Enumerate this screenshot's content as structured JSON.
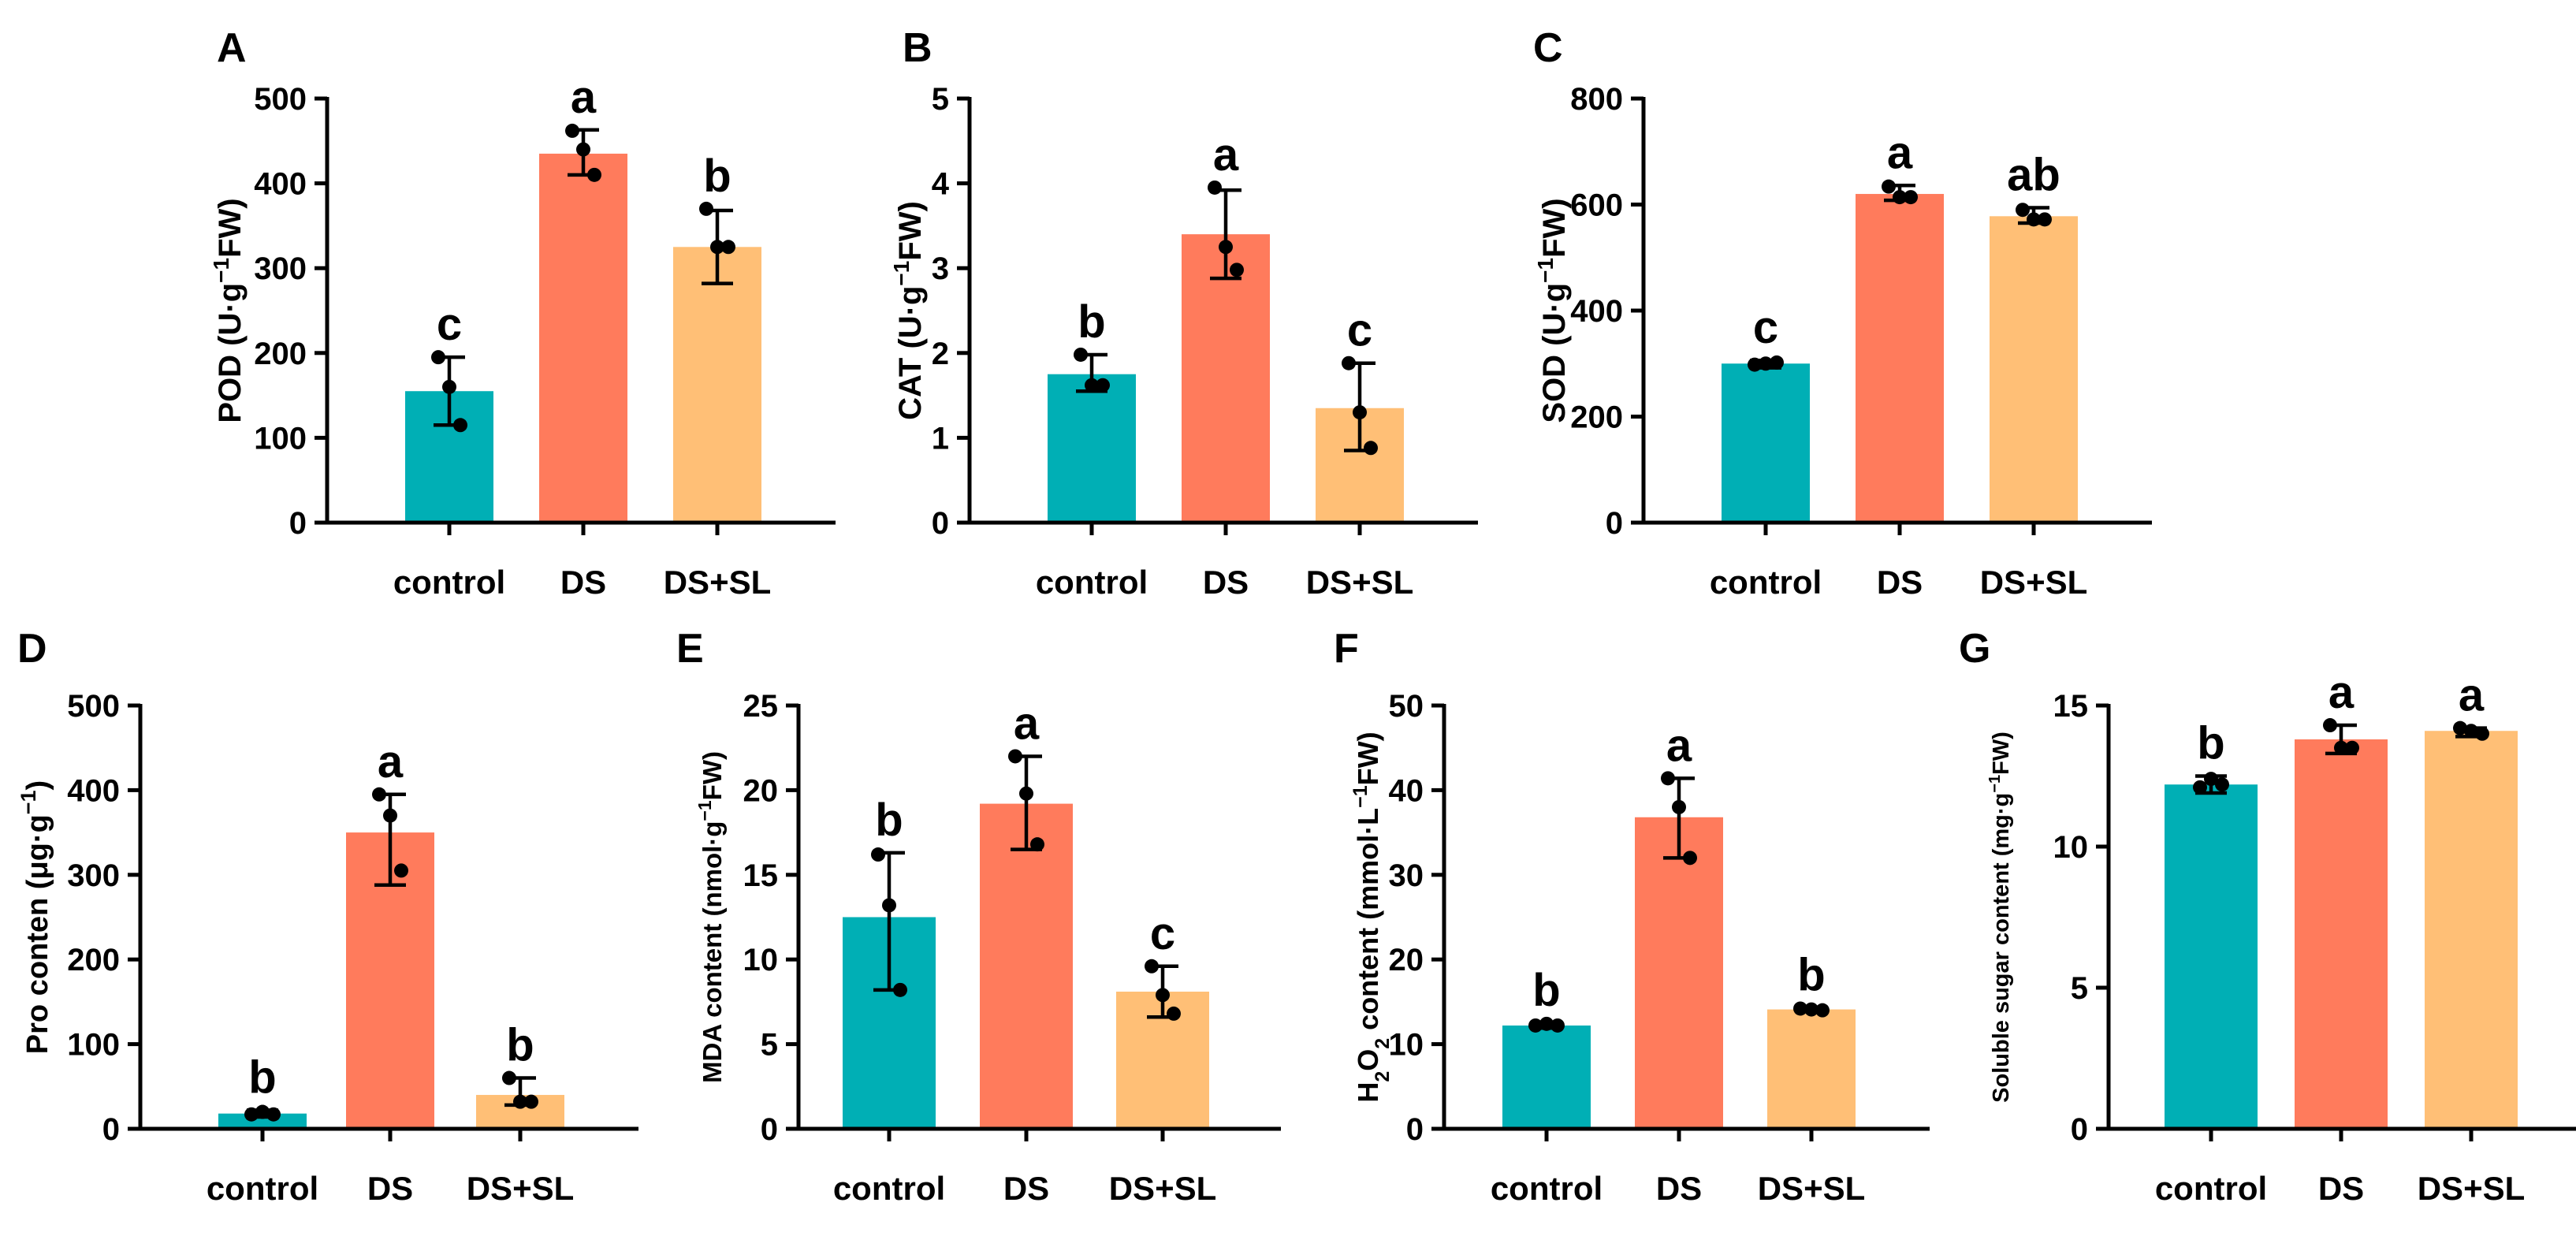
{
  "colors": {
    "control": "#00AFB5",
    "DS": "#FF7B5C",
    "DS+SL": "#FFBF76"
  },
  "chart_data": [
    {
      "panel": "A",
      "type": "bar",
      "ylabel": {
        "base": "POD (U·g",
        "sup": "−1",
        "tail": "FW)"
      },
      "ylim": [
        0,
        500
      ],
      "yticks": [
        0,
        100,
        200,
        300,
        400,
        500
      ],
      "categories": [
        "control",
        "DS",
        "DS+SL"
      ],
      "values": [
        155,
        435,
        325
      ],
      "err": [
        [
          115,
          195
        ],
        [
          410,
          463
        ],
        [
          282,
          368
        ]
      ],
      "points": [
        [
          195,
          160,
          115
        ],
        [
          462,
          440,
          410
        ],
        [
          370,
          325,
          325
        ]
      ],
      "sig": [
        "c",
        "a",
        "b"
      ]
    },
    {
      "panel": "B",
      "type": "bar",
      "ylabel": {
        "base": "CAT (U·g",
        "sup": "−1",
        "tail": "FW)"
      },
      "ylim": [
        0,
        5
      ],
      "yticks": [
        0,
        1,
        2,
        3,
        4,
        5
      ],
      "categories": [
        "control",
        "DS",
        "DS+SL"
      ],
      "values": [
        1.75,
        3.4,
        1.35
      ],
      "err": [
        [
          1.55,
          1.98
        ],
        [
          2.88,
          3.92
        ],
        [
          0.85,
          1.88
        ]
      ],
      "points": [
        [
          1.98,
          1.62,
          1.62
        ],
        [
          3.95,
          3.25,
          2.98
        ],
        [
          1.88,
          1.3,
          0.88
        ]
      ],
      "sig": [
        "b",
        "a",
        "c"
      ]
    },
    {
      "panel": "C",
      "type": "bar",
      "ylabel": {
        "base": "SOD (U·g",
        "sup": "−1",
        "tail": "FW)"
      },
      "ylim": [
        0,
        800
      ],
      "yticks": [
        0,
        200,
        400,
        600,
        800
      ],
      "categories": [
        "control",
        "DS",
        "DS+SL"
      ],
      "values": [
        300,
        620,
        578
      ],
      "err": [
        [
          292,
          306
        ],
        [
          608,
          636
        ],
        [
          565,
          594
        ]
      ],
      "points": [
        [
          298,
          300,
          302
        ],
        [
          634,
          614,
          614
        ],
        [
          590,
          572,
          572
        ]
      ],
      "sig": [
        "c",
        "a",
        "ab"
      ]
    },
    {
      "panel": "D",
      "type": "bar",
      "ylabel": {
        "base": "Pro conten (μg·g",
        "sup": "−1",
        "tail": ")"
      },
      "ylim": [
        0,
        500
      ],
      "yticks": [
        0,
        100,
        200,
        300,
        400,
        500
      ],
      "categories": [
        "control",
        "DS",
        "DS+SL"
      ],
      "values": [
        18,
        350,
        40
      ],
      "err": [
        [
          14,
          22
        ],
        [
          288,
          395
        ],
        [
          28,
          60
        ]
      ],
      "points": [
        [
          17,
          20,
          17
        ],
        [
          395,
          370,
          305
        ],
        [
          60,
          32,
          32
        ]
      ],
      "sig": [
        "b",
        "a",
        "b"
      ]
    },
    {
      "panel": "E",
      "type": "bar",
      "ylabel": {
        "base": "MDA content (nmol·g",
        "sup": "−1",
        "tail": "FW)"
      },
      "ylim": [
        0,
        25
      ],
      "yticks": [
        0,
        5,
        10,
        15,
        20,
        25
      ],
      "categories": [
        "control",
        "DS",
        "DS+SL"
      ],
      "values": [
        12.5,
        19.2,
        8.1
      ],
      "err": [
        [
          8.2,
          16.3
        ],
        [
          16.5,
          22.0
        ],
        [
          6.6,
          9.6
        ]
      ],
      "points": [
        [
          16.2,
          13.2,
          8.2
        ],
        [
          22.0,
          19.8,
          16.8
        ],
        [
          9.6,
          7.9,
          6.8
        ]
      ],
      "sig": [
        "b",
        "a",
        "c"
      ]
    },
    {
      "panel": "F",
      "type": "bar",
      "ylabel": {
        "pre": "H",
        "sub1": "2",
        "mid": "O",
        "sub2": "2",
        "base": " content (mmol·L",
        "sup": "−1",
        "tail": "FW)"
      },
      "ylim": [
        0,
        50
      ],
      "yticks": [
        0,
        10,
        20,
        30,
        40,
        50
      ],
      "categories": [
        "control",
        "DS",
        "DS+SL"
      ],
      "values": [
        12.2,
        36.8,
        14.1
      ],
      "err": [
        [
          11.9,
          12.5
        ],
        [
          32.0,
          41.4
        ],
        [
          13.9,
          14.3
        ]
      ],
      "points": [
        [
          12.2,
          12.4,
          12.2
        ],
        [
          41.4,
          38.0,
          32.0
        ],
        [
          14.2,
          14.1,
          14.0
        ]
      ],
      "sig": [
        "b",
        "a",
        "b"
      ]
    },
    {
      "panel": "G",
      "type": "bar",
      "ylabel": {
        "base": "Soluble sugar content (mg·g",
        "sup": "−1",
        "tail": "FW)"
      },
      "ylim": [
        0,
        15
      ],
      "yticks": [
        0,
        5,
        10,
        15
      ],
      "categories": [
        "control",
        "DS",
        "DS+SL"
      ],
      "values": [
        12.2,
        13.8,
        14.1
      ],
      "err": [
        [
          11.9,
          12.5
        ],
        [
          13.3,
          14.3
        ],
        [
          13.9,
          14.2
        ]
      ],
      "points": [
        [
          12.1,
          12.4,
          12.2
        ],
        [
          14.3,
          13.5,
          13.5
        ],
        [
          14.2,
          14.1,
          14.0
        ]
      ],
      "sig": [
        "b",
        "a",
        "a"
      ]
    }
  ]
}
